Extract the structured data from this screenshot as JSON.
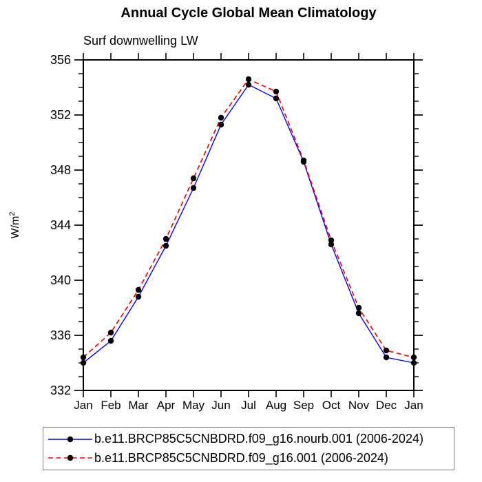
{
  "chart_data": {
    "type": "line",
    "title": "Annual Cycle Global Mean Climatology",
    "subtitle": "Surf downwelling LW",
    "ylabel": "W/m²",
    "ylabel_base": "W/m",
    "ylabel_exponent": "2",
    "xlabel": "",
    "categories": [
      "Jan",
      "Feb",
      "Mar",
      "Apr",
      "May",
      "Jun",
      "Jul",
      "Aug",
      "Sep",
      "Oct",
      "Nov",
      "Dec",
      "Jan"
    ],
    "ylim": [
      332,
      356
    ],
    "ytick_major": [
      332,
      336,
      340,
      344,
      348,
      352,
      356
    ],
    "ytick_minor_step": 1,
    "grid": false,
    "legend_position": "bottom",
    "frame_color": "#000000",
    "marker_color": "#000000",
    "series": [
      {
        "name": "b.e11.BRCP85C5CNBDRD.f09_g16.nourb.001 (2006-2024)",
        "color": "#0000ff",
        "style": "solid",
        "marker": "circle",
        "values": [
          334.0,
          335.6,
          338.8,
          342.5,
          346.7,
          351.3,
          354.2,
          353.2,
          348.6,
          342.6,
          337.6,
          334.4,
          334.0
        ]
      },
      {
        "name": "b.e11.BRCP85C5CNBDRD.f09_g16.001 (2006-2024)",
        "color": "#ff0000",
        "style": "dashed",
        "marker": "circle",
        "values": [
          334.4,
          336.2,
          339.3,
          343.0,
          347.4,
          351.8,
          354.6,
          353.7,
          348.7,
          342.9,
          338.0,
          334.9,
          334.4
        ]
      }
    ]
  }
}
